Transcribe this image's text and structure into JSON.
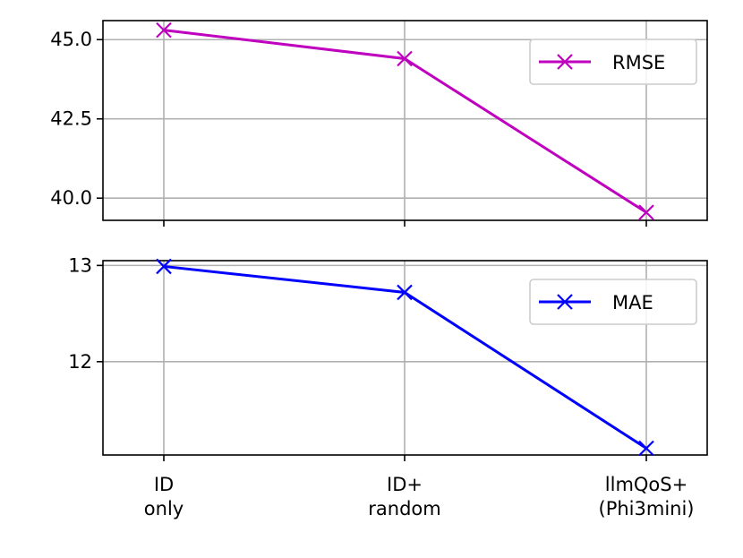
{
  "chart_data": [
    {
      "type": "line",
      "categories": [
        "ID\nonly",
        "ID+\nrandom",
        "llmQoS+\n(Phi3mini)"
      ],
      "series": [
        {
          "name": "RMSE",
          "color": "#bf00bf",
          "marker": "x",
          "values": [
            45.3,
            44.4,
            39.55
          ]
        }
      ],
      "yticks": [
        40.0,
        42.5,
        45.0
      ],
      "ytick_labels": [
        "40.0",
        "42.5",
        "45.0"
      ],
      "ylim": [
        39.3,
        45.6
      ],
      "grid": true,
      "legend": "upper-right",
      "show_xtick_labels": false
    },
    {
      "type": "line",
      "categories": [
        "ID\nonly",
        "ID+\nrandom",
        "llmQoS+\n(Phi3mini)"
      ],
      "series": [
        {
          "name": "MAE",
          "color": "#0000ff",
          "marker": "x",
          "values": [
            12.99,
            12.72,
            11.1
          ]
        }
      ],
      "yticks": [
        12,
        13
      ],
      "ytick_labels": [
        "12",
        "13"
      ],
      "ylim": [
        11.03,
        13.05
      ],
      "grid": true,
      "legend": "upper-right",
      "show_xtick_labels": true
    }
  ]
}
